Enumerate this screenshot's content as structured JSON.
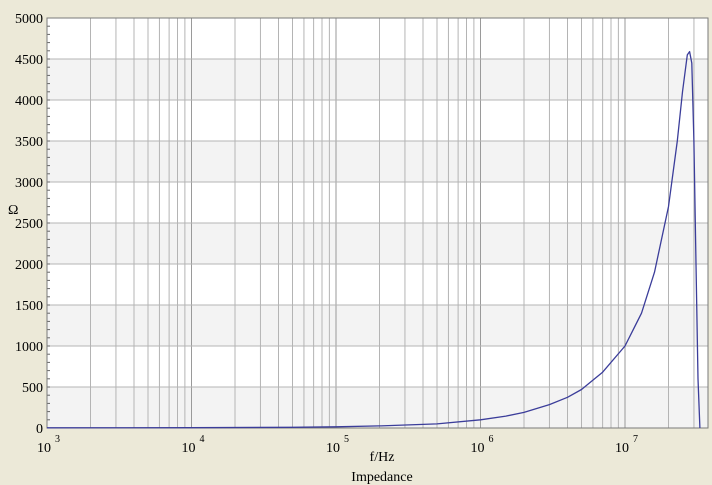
{
  "chart_data": {
    "type": "line",
    "title": "",
    "xlabel": "f/Hz",
    "ylabel": "Ω",
    "caption": "Impedance",
    "x_scale": "log",
    "xlim": [
      1000,
      40000000
    ],
    "ylim": [
      0,
      5000
    ],
    "x_ticks": [
      {
        "base": "10",
        "exp": "3"
      },
      {
        "base": "10",
        "exp": "4"
      },
      {
        "base": "10",
        "exp": "5"
      },
      {
        "base": "10",
        "exp": "6"
      },
      {
        "base": "10",
        "exp": "7"
      }
    ],
    "y_ticks": [
      "0",
      "500",
      "1000",
      "1500",
      "2000",
      "2500",
      "3000",
      "3500",
      "4000",
      "4500",
      "5000"
    ],
    "grid": true,
    "line_color": "#3b3d9a",
    "series": [
      {
        "x": [
          1000,
          10000,
          50000,
          100000,
          200000,
          500000,
          1000000,
          1500000,
          2000000,
          3000000,
          4000000,
          5000000,
          7000000,
          10000000,
          13000000,
          16000000,
          20000000,
          23000000,
          25000000,
          27000000,
          28000000,
          29000000,
          30000000,
          31000000,
          32000000,
          33000000
        ],
        "y": [
          2,
          4,
          8,
          15,
          25,
          50,
          100,
          145,
          190,
          285,
          375,
          470,
          680,
          1000,
          1400,
          1900,
          2700,
          3500,
          4100,
          4550,
          4590,
          4450,
          3500,
          2000,
          600,
          0
        ]
      }
    ]
  }
}
